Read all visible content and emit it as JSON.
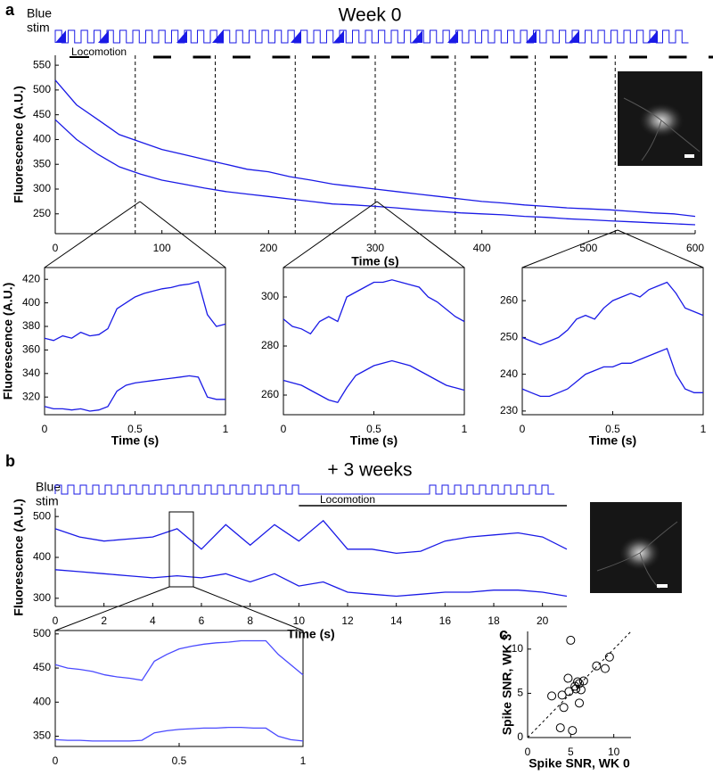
{
  "chart_data": [
    {
      "type": "line",
      "panel_label": "a",
      "title": "Week 0",
      "stim_label": [
        "Blue",
        "stim"
      ],
      "annotation": "Locomotion",
      "xlabel": "Time (s)",
      "ylabel": "Fluorescence (A.U.)",
      "x": [
        0,
        20,
        40,
        60,
        80,
        100,
        120,
        140,
        160,
        180,
        200,
        220,
        240,
        260,
        280,
        300,
        320,
        340,
        360,
        380,
        400,
        420,
        440,
        460,
        480,
        500,
        520,
        540,
        560,
        580,
        600
      ],
      "series": [
        {
          "color": "#1a1ae6",
          "values": [
            520,
            470,
            440,
            410,
            395,
            380,
            370,
            360,
            350,
            340,
            335,
            325,
            318,
            310,
            305,
            300,
            295,
            290,
            285,
            280,
            275,
            272,
            268,
            265,
            262,
            260,
            258,
            255,
            252,
            250,
            245
          ]
        },
        {
          "color": "#1a1ae6",
          "values": [
            440,
            400,
            370,
            345,
            330,
            318,
            310,
            302,
            295,
            290,
            285,
            280,
            275,
            270,
            268,
            265,
            262,
            258,
            255,
            252,
            250,
            248,
            245,
            243,
            240,
            238,
            236,
            234,
            232,
            230,
            228
          ]
        }
      ],
      "dashed_lines": [
        75,
        150,
        225,
        300,
        375,
        450,
        525
      ],
      "xlim": [
        0,
        600
      ],
      "ylim": [
        210,
        570
      ],
      "xticks": [
        0,
        100,
        200,
        300,
        400,
        500,
        600
      ],
      "yticks": [
        250,
        300,
        350,
        400,
        450,
        500,
        550
      ]
    },
    {
      "type": "line",
      "xlabel": "Time (s)",
      "ylabel": "Fluorescence (A.U.)",
      "x": [
        0,
        0.05,
        0.1,
        0.15,
        0.2,
        0.25,
        0.3,
        0.35,
        0.4,
        0.45,
        0.5,
        0.55,
        0.6,
        0.65,
        0.7,
        0.75,
        0.8,
        0.85,
        0.9,
        0.95,
        1
      ],
      "series": [
        {
          "color": "#1a1ae6",
          "values": [
            370,
            368,
            372,
            370,
            375,
            372,
            373,
            378,
            395,
            400,
            405,
            408,
            410,
            412,
            413,
            415,
            416,
            418,
            390,
            380,
            382
          ]
        },
        {
          "color": "#1a1ae6",
          "values": [
            312,
            310,
            310,
            309,
            310,
            308,
            309,
            312,
            325,
            330,
            332,
            333,
            334,
            335,
            336,
            337,
            338,
            337,
            320,
            318,
            318
          ]
        }
      ],
      "xlim": [
        0,
        1
      ],
      "ylim": [
        305,
        430
      ],
      "xticks": [
        0,
        0.5,
        1
      ],
      "yticks": [
        320,
        340,
        360,
        380,
        400,
        420
      ]
    },
    {
      "type": "line",
      "xlabel": "Time (s)",
      "x": [
        0,
        0.05,
        0.1,
        0.15,
        0.2,
        0.25,
        0.3,
        0.35,
        0.4,
        0.45,
        0.5,
        0.55,
        0.6,
        0.65,
        0.7,
        0.75,
        0.8,
        0.85,
        0.9,
        0.95,
        1
      ],
      "series": [
        {
          "color": "#1a1ae6",
          "values": [
            291,
            288,
            287,
            285,
            290,
            292,
            290,
            300,
            302,
            304,
            306,
            306,
            307,
            306,
            305,
            304,
            300,
            298,
            295,
            292,
            290
          ]
        },
        {
          "color": "#1a1ae6",
          "values": [
            266,
            265,
            264,
            262,
            260,
            258,
            257,
            263,
            268,
            270,
            272,
            273,
            274,
            273,
            272,
            270,
            268,
            266,
            264,
            263,
            262
          ]
        }
      ],
      "xlim": [
        0,
        1
      ],
      "ylim": [
        252,
        312
      ],
      "xticks": [
        0,
        0.5,
        1
      ],
      "yticks": [
        260,
        280,
        300
      ]
    },
    {
      "type": "line",
      "xlabel": "Time (s)",
      "x": [
        0,
        0.05,
        0.1,
        0.15,
        0.2,
        0.25,
        0.3,
        0.35,
        0.4,
        0.45,
        0.5,
        0.55,
        0.6,
        0.65,
        0.7,
        0.75,
        0.8,
        0.85,
        0.9,
        0.95,
        1
      ],
      "series": [
        {
          "color": "#1a1ae6",
          "values": [
            250,
            249,
            248,
            249,
            250,
            252,
            255,
            256,
            255,
            258,
            260,
            261,
            262,
            261,
            263,
            264,
            265,
            262,
            258,
            257,
            256
          ]
        },
        {
          "color": "#1a1ae6",
          "values": [
            236,
            235,
            234,
            234,
            235,
            236,
            238,
            240,
            241,
            242,
            242,
            243,
            243,
            244,
            245,
            246,
            247,
            240,
            236,
            235,
            235
          ]
        }
      ],
      "xlim": [
        0,
        1
      ],
      "ylim": [
        229,
        269
      ],
      "xticks": [
        0,
        0.5,
        1
      ],
      "yticks": [
        230,
        240,
        250,
        260
      ]
    },
    {
      "type": "line",
      "panel_label": "b",
      "title": "+ 3 weeks",
      "stim_label": [
        "Blue",
        "stim"
      ],
      "annotation": "Locomotion",
      "xlabel": "Time (s)",
      "ylabel": "Fluorescence (A.U.)",
      "x": [
        0,
        1,
        2,
        3,
        4,
        5,
        6,
        7,
        8,
        9,
        10,
        11,
        12,
        13,
        14,
        15,
        16,
        17,
        18,
        19,
        20,
        21
      ],
      "series": [
        {
          "color": "#1a1ae6",
          "values": [
            470,
            450,
            440,
            445,
            450,
            470,
            420,
            480,
            430,
            480,
            440,
            490,
            420,
            420,
            410,
            415,
            440,
            450,
            455,
            460,
            450,
            420
          ]
        },
        {
          "color": "#1a1ae6",
          "values": [
            370,
            365,
            360,
            355,
            350,
            355,
            350,
            360,
            340,
            360,
            330,
            340,
            315,
            310,
            305,
            310,
            315,
            315,
            320,
            320,
            315,
            305
          ]
        }
      ],
      "xlim": [
        0,
        21
      ],
      "ylim": [
        280,
        520
      ],
      "xticks": [
        0,
        2,
        4,
        6,
        8,
        10,
        12,
        14,
        16,
        18,
        20
      ],
      "yticks": [
        300,
        400,
        500
      ]
    },
    {
      "type": "line",
      "x": [
        0,
        0.05,
        0.1,
        0.15,
        0.2,
        0.25,
        0.3,
        0.35,
        0.4,
        0.45,
        0.5,
        0.55,
        0.6,
        0.65,
        0.7,
        0.75,
        0.8,
        0.85,
        0.9,
        0.95,
        1
      ],
      "series": [
        {
          "color": "#4a4aff",
          "values": [
            455,
            450,
            448,
            445,
            440,
            437,
            435,
            432,
            460,
            470,
            478,
            482,
            485,
            487,
            488,
            490,
            490,
            490,
            470,
            455,
            440
          ]
        },
        {
          "color": "#4a4aff",
          "values": [
            345,
            344,
            344,
            343,
            343,
            343,
            343,
            344,
            355,
            358,
            360,
            361,
            362,
            362,
            363,
            363,
            362,
            362,
            350,
            345,
            343
          ]
        }
      ],
      "xlim": [
        0,
        1
      ],
      "ylim": [
        335,
        505
      ],
      "xticks": [
        0,
        0.5,
        1
      ],
      "yticks": [
        350,
        400,
        450,
        500
      ]
    },
    {
      "type": "scatter",
      "panel_label": "c",
      "xlabel": "Spike SNR, WK 0",
      "ylabel": "Spike SNR, WK 3",
      "x": [
        2.8,
        4,
        4.2,
        3.8,
        5,
        4.8,
        5.5,
        5.8,
        6,
        6.2,
        6.5,
        5.2,
        6,
        8,
        9,
        9.5,
        5.6,
        4.7
      ],
      "values": [
        4.7,
        4.8,
        3.4,
        1.1,
        11,
        5.2,
        5.8,
        6.3,
        6.1,
        5.4,
        6.4,
        0.8,
        3.9,
        8.1,
        7.8,
        9.1,
        5.5,
        6.7
      ],
      "xlim": [
        0,
        12
      ],
      "ylim": [
        0,
        12
      ],
      "xticks": [
        0,
        5,
        10
      ],
      "yticks": [
        0,
        5,
        10
      ]
    }
  ]
}
